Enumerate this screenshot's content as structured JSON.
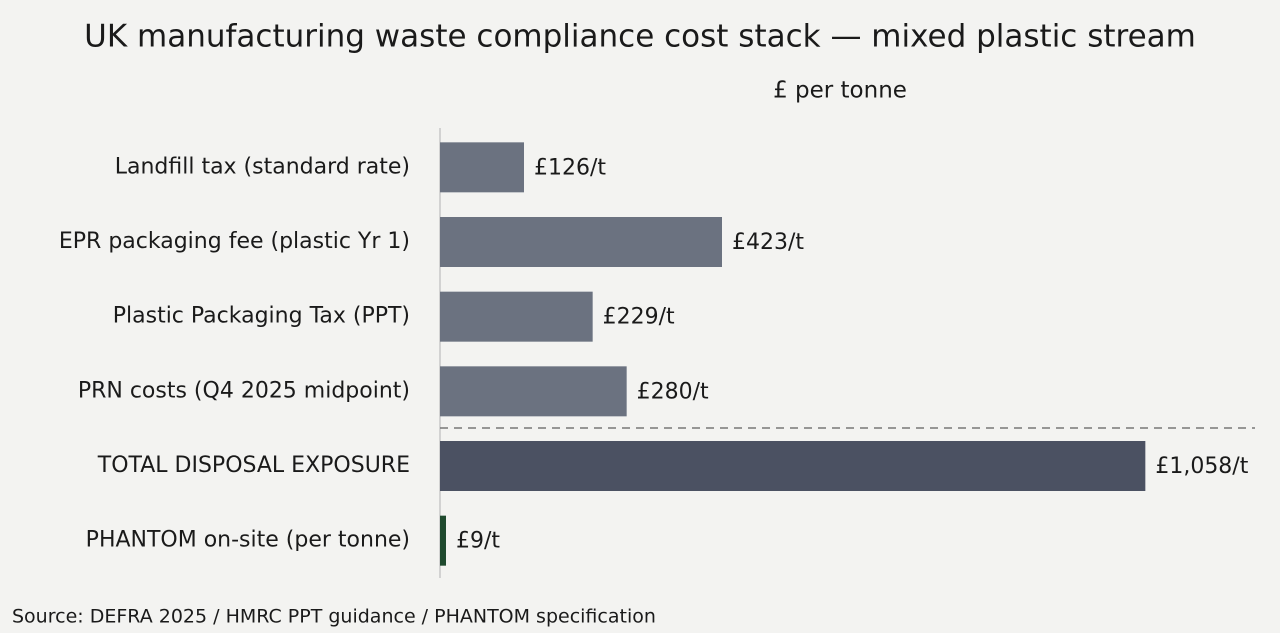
{
  "chart_data": {
    "type": "bar",
    "orientation": "horizontal",
    "title": "UK manufacturing waste compliance cost stack — mixed plastic stream",
    "x_label": "£ per tonne",
    "categories": [
      "Landfill tax (standard rate)",
      "EPR packaging fee (plastic Yr 1)",
      "Plastic Packaging Tax (PPT)",
      "PRN costs (Q4 2025 midpoint)",
      "TOTAL DISPOSAL EXPOSURE",
      "PHANTOM on-site (per tonne)"
    ],
    "values": [
      126,
      423,
      229,
      280,
      1058,
      9
    ],
    "value_labels": [
      "£126/t",
      "£423/t",
      "£229/t",
      "£280/t",
      "£1,058/t",
      "£9/t"
    ],
    "colors": [
      "#6b7280",
      "#6b7280",
      "#6b7280",
      "#6b7280",
      "#4b5162",
      "#1f4a2e"
    ],
    "xlim": [
      0,
      1200
    ],
    "source": "Source: DEFRA 2025 / HMRC PPT guidance / PHANTOM specification"
  }
}
